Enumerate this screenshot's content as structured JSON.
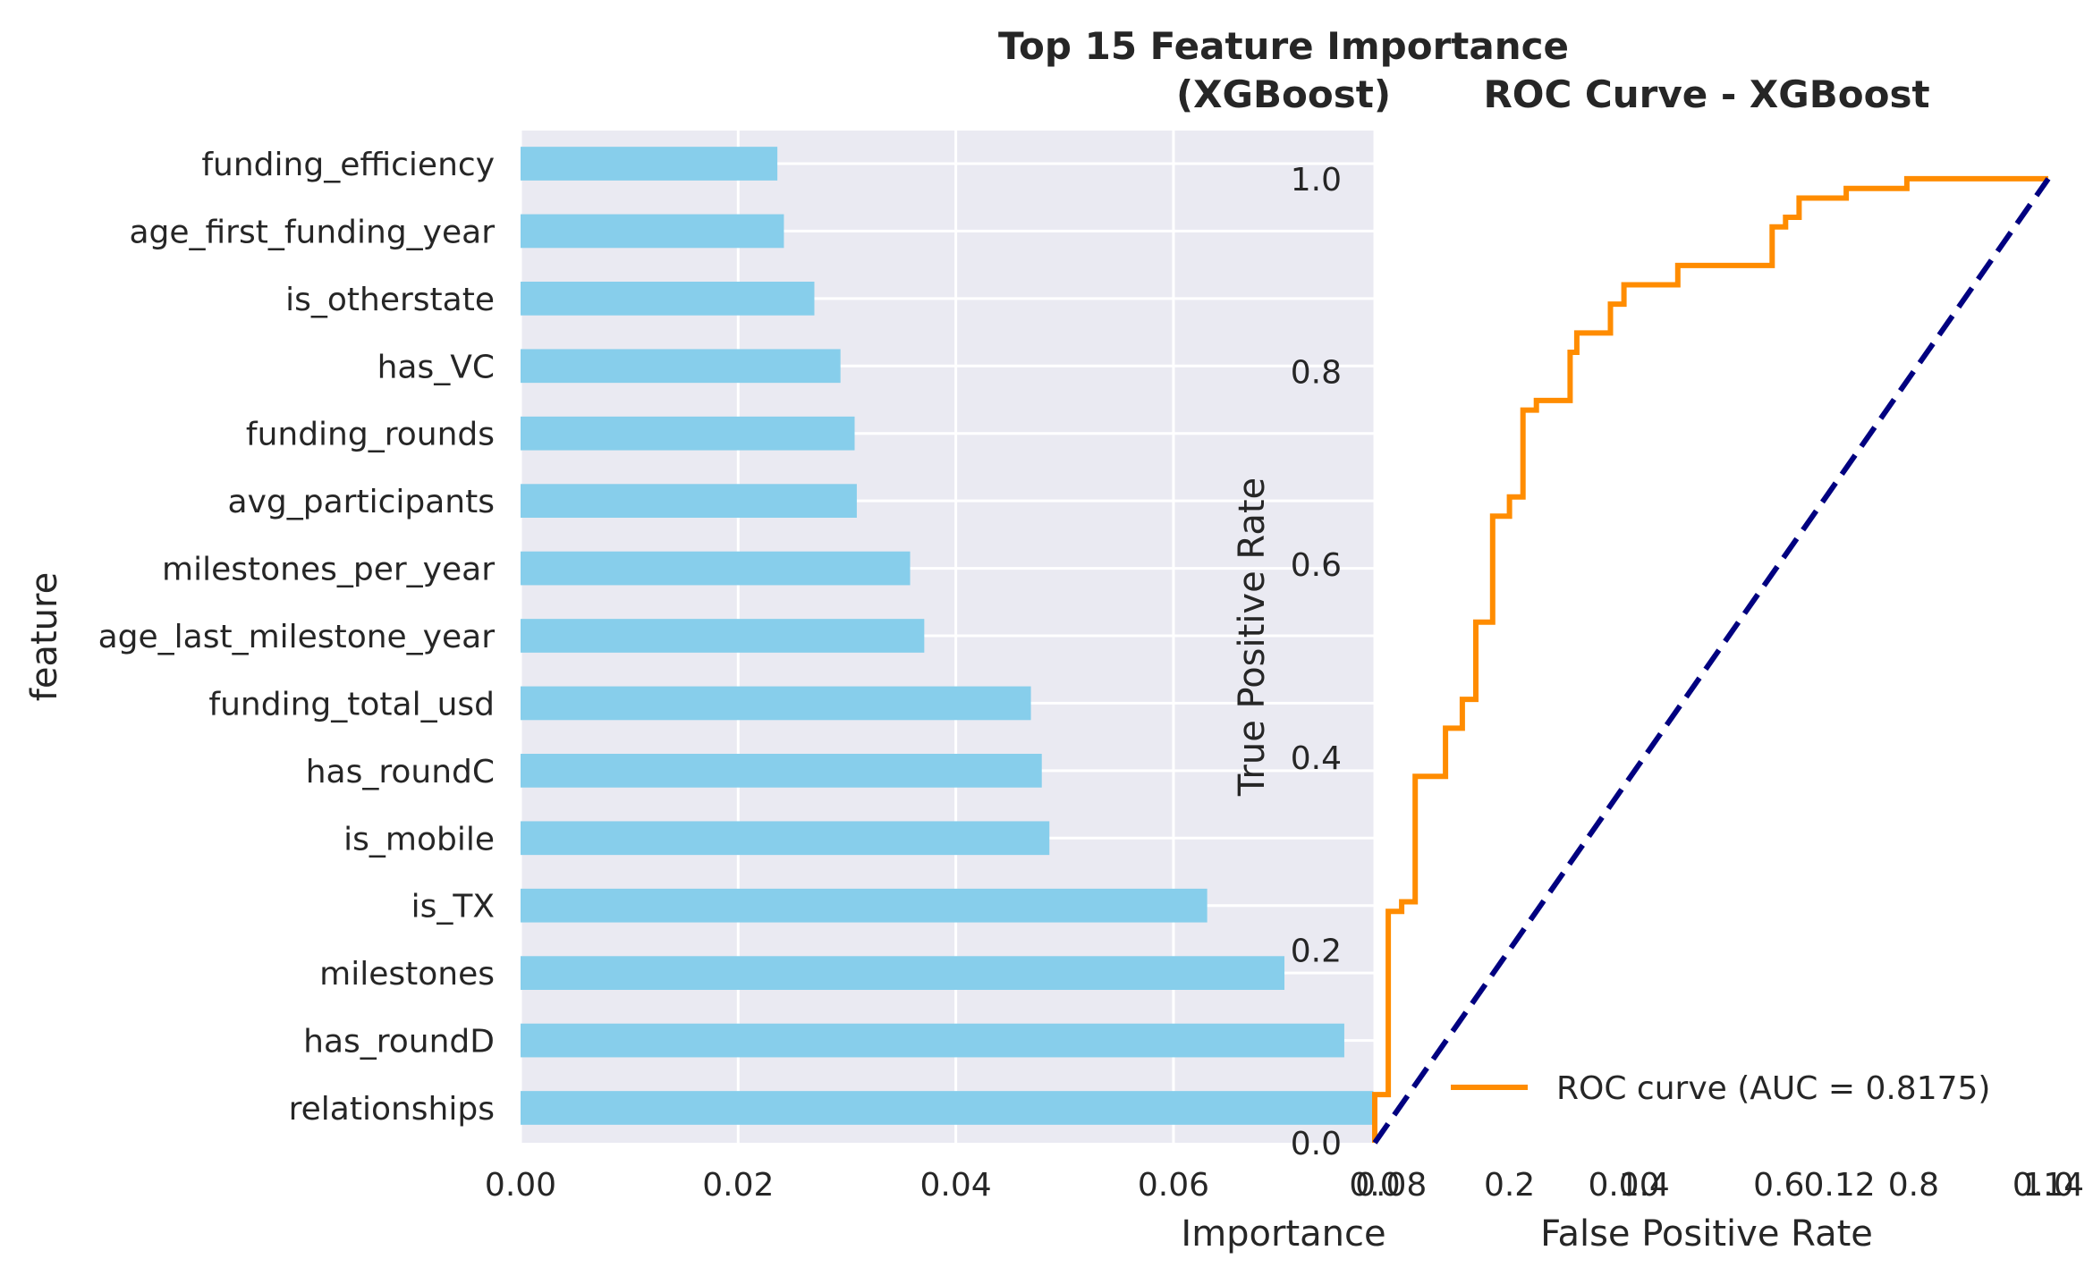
{
  "chart_data": [
    {
      "type": "bar",
      "orientation": "horizontal",
      "title": "Top 15 Feature Importance\n(XGBoost)",
      "xlabel": "Importance",
      "ylabel": "feature",
      "xlim": [
        0,
        0.0785
      ],
      "xticks": [
        "0.00",
        "0.02",
        "0.04",
        "0.06",
        "0.08"
      ],
      "xtick_values": [
        0,
        0.02,
        0.04,
        0.06,
        0.08
      ],
      "grid": true,
      "color": "#87CEEB",
      "categories": [
        "funding_efficiency",
        "age_first_funding_year",
        "is_otherstate",
        "has_VC",
        "funding_rounds",
        "avg_participants",
        "milestones_per_year",
        "age_last_milestone_year",
        "funding_total_usd",
        "has_roundC",
        "is_mobile",
        "is_TX",
        "milestones",
        "has_roundD",
        "relationships"
      ],
      "values": [
        0.0236,
        0.0242,
        0.027,
        0.0294,
        0.0307,
        0.0309,
        0.0358,
        0.0371,
        0.0469,
        0.0479,
        0.0486,
        0.0631,
        0.0702,
        0.0757,
        0.0785
      ]
    },
    {
      "type": "line",
      "title": "ROC Curve - XGBoost",
      "xlabel": "False Positive Rate",
      "ylabel": "True Positive Rate",
      "xlim": [
        0,
        1
      ],
      "ylim": [
        0,
        1.05
      ],
      "xticks": [
        "0.0",
        "0.2",
        "0.4",
        "0.6",
        "0.8",
        "1.0"
      ],
      "yticks": [
        "0.0",
        "0.2",
        "0.4",
        "0.6",
        "0.8",
        "1.0"
      ],
      "overlap_tick_labels": [
        "0.10",
        "0.12",
        "0.14"
      ],
      "grid": true,
      "legend_position": "lower-right",
      "series": [
        {
          "name": "ROC curve (AUC = 0.8175)",
          "color": "#FF8C00",
          "x": [
            0,
            0,
            0.02,
            0.02,
            0.04,
            0.04,
            0.06,
            0.06,
            0.105,
            0.105,
            0.13,
            0.13,
            0.15,
            0.15,
            0.175,
            0.175,
            0.2,
            0.2,
            0.22,
            0.22,
            0.24,
            0.24,
            0.29,
            0.29,
            0.3,
            0.3,
            0.35,
            0.35,
            0.37,
            0.37,
            0.45,
            0.45,
            0.59,
            0.59,
            0.61,
            0.61,
            0.63,
            0.63,
            0.7,
            0.7,
            0.79,
            0.79,
            1.0
          ],
          "y": [
            0,
            0.05,
            0.05,
            0.24,
            0.24,
            0.25,
            0.25,
            0.38,
            0.38,
            0.43,
            0.43,
            0.46,
            0.46,
            0.54,
            0.54,
            0.65,
            0.65,
            0.67,
            0.67,
            0.76,
            0.76,
            0.77,
            0.77,
            0.82,
            0.82,
            0.84,
            0.84,
            0.87,
            0.87,
            0.89,
            0.89,
            0.91,
            0.91,
            0.95,
            0.95,
            0.96,
            0.96,
            0.98,
            0.98,
            0.99,
            0.99,
            1.0,
            1.0
          ]
        },
        {
          "name": "",
          "color": "#000080",
          "style": "dashed",
          "x": [
            0,
            1
          ],
          "y": [
            0,
            1
          ]
        }
      ]
    }
  ]
}
